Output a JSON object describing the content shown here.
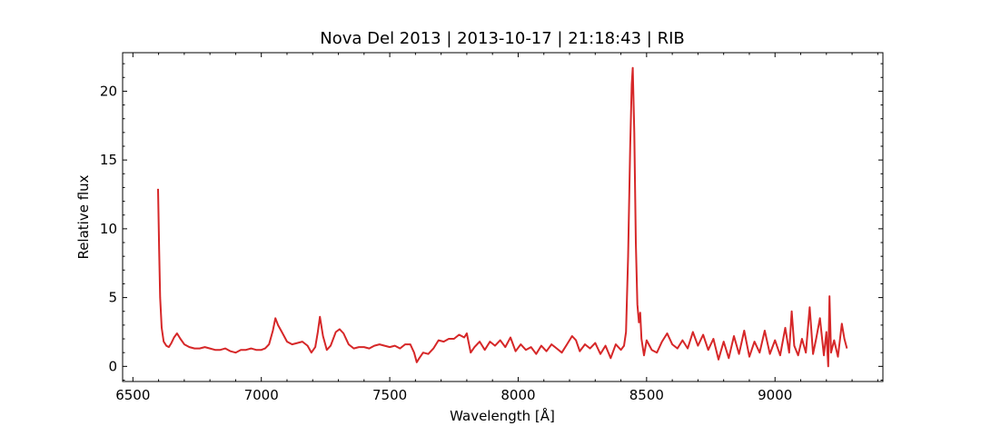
{
  "chart_data": {
    "type": "line",
    "title": "Nova Del 2013 | 2013-10-17 | 21:18:43 | RIB",
    "xlabel": "Wavelength [Å]",
    "ylabel": "Relative flux",
    "xlim": [
      6460,
      9420
    ],
    "ylim": [
      -1.1,
      22.8
    ],
    "xticks": [
      6500,
      7000,
      7500,
      8000,
      8500,
      9000
    ],
    "yticks": [
      0,
      5,
      10,
      15,
      20
    ],
    "grid": false,
    "line_color": "#d62728",
    "series": [
      {
        "x": [
          6598,
          6602,
          6606,
          6612,
          6620,
          6630,
          6640,
          6650,
          6660,
          6672,
          6685,
          6700,
          6720,
          6740,
          6760,
          6780,
          6800,
          6820,
          6840,
          6860,
          6880,
          6900,
          6920,
          6940,
          6960,
          6980,
          7000,
          7015,
          7030,
          7045,
          7055,
          7065,
          7080,
          7100,
          7120,
          7140,
          7160,
          7180,
          7195,
          7210,
          7220,
          7228,
          7240,
          7255,
          7270,
          7290,
          7305,
          7320,
          7340,
          7360,
          7380,
          7400,
          7420,
          7440,
          7460,
          7480,
          7500,
          7520,
          7540,
          7560,
          7580,
          7595,
          7605,
          7615,
          7630,
          7650,
          7670,
          7690,
          7710,
          7730,
          7750,
          7770,
          7790,
          7800,
          7815,
          7830,
          7850,
          7870,
          7890,
          7910,
          7930,
          7950,
          7970,
          7990,
          8010,
          8030,
          8050,
          8070,
          8090,
          8110,
          8130,
          8150,
          8170,
          8190,
          8210,
          8225,
          8240,
          8260,
          8280,
          8300,
          8320,
          8340,
          8360,
          8380,
          8400,
          8412,
          8420,
          8428,
          8436,
          8442,
          8446,
          8452,
          8458,
          8464,
          8470,
          8475,
          8480,
          8485,
          8490,
          8500,
          8520,
          8540,
          8560,
          8580,
          8600,
          8620,
          8640,
          8660,
          8680,
          8700,
          8720,
          8740,
          8760,
          8780,
          8800,
          8820,
          8840,
          8860,
          8880,
          8900,
          8920,
          8940,
          8960,
          8980,
          9000,
          9020,
          9040,
          9055,
          9065,
          9075,
          9090,
          9105,
          9120,
          9135,
          9148,
          9160,
          9175,
          9190,
          9200,
          9207,
          9212,
          9218,
          9230,
          9245,
          9260,
          9270,
          9280
        ],
        "y": [
          12.9,
          8.5,
          5.0,
          2.8,
          1.8,
          1.5,
          1.4,
          1.7,
          2.1,
          2.4,
          2.0,
          1.6,
          1.4,
          1.3,
          1.3,
          1.4,
          1.3,
          1.2,
          1.2,
          1.3,
          1.1,
          1.0,
          1.2,
          1.2,
          1.3,
          1.2,
          1.2,
          1.3,
          1.6,
          2.6,
          3.5,
          3.0,
          2.5,
          1.8,
          1.6,
          1.7,
          1.8,
          1.5,
          1.0,
          1.4,
          2.5,
          3.6,
          2.2,
          1.2,
          1.5,
          2.5,
          2.7,
          2.4,
          1.6,
          1.3,
          1.4,
          1.4,
          1.3,
          1.5,
          1.6,
          1.5,
          1.4,
          1.5,
          1.3,
          1.6,
          1.6,
          1.0,
          0.3,
          0.6,
          1.0,
          0.9,
          1.3,
          1.9,
          1.8,
          2.0,
          2.0,
          2.3,
          2.1,
          2.4,
          1.0,
          1.4,
          1.8,
          1.2,
          1.8,
          1.5,
          1.9,
          1.4,
          2.1,
          1.1,
          1.6,
          1.2,
          1.4,
          0.9,
          1.5,
          1.1,
          1.6,
          1.3,
          1.0,
          1.6,
          2.2,
          1.9,
          1.1,
          1.6,
          1.3,
          1.7,
          0.9,
          1.5,
          0.6,
          1.6,
          1.2,
          1.5,
          2.5,
          8.0,
          16.0,
          20.5,
          21.7,
          17.0,
          9.0,
          4.5,
          3.2,
          3.9,
          2.0,
          1.4,
          0.8,
          1.9,
          1.2,
          1.0,
          1.8,
          2.4,
          1.6,
          1.3,
          1.9,
          1.3,
          2.5,
          1.5,
          2.3,
          1.2,
          2.0,
          0.5,
          1.8,
          0.6,
          2.2,
          0.9,
          2.6,
          0.7,
          1.8,
          1.0,
          2.6,
          0.9,
          1.9,
          0.8,
          2.8,
          1.0,
          4.0,
          1.5,
          0.8,
          2.0,
          1.0,
          4.3,
          0.9,
          2.0,
          3.5,
          0.8,
          2.5,
          0.0,
          5.1,
          1.0,
          1.9,
          0.7,
          3.1,
          2.0,
          1.3
        ]
      }
    ]
  }
}
